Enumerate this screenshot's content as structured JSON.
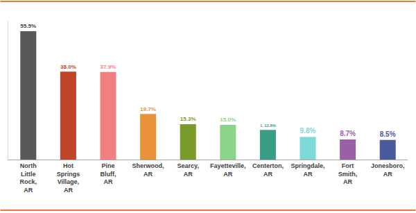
{
  "chart_data": {
    "type": "bar",
    "categories": [
      "North Little Rock, AR",
      "Hot Springs Village, AR",
      "Pine Bluff, AR",
      "Sherwood, AR",
      "Searcy, AR",
      "Fayetteville, AR",
      "Centerton, AR",
      "Springdale, AR",
      "Fort Smith, AR",
      "Jonesboro, AR"
    ],
    "values": [
      55.5,
      38.0,
      37.9,
      19.7,
      15.3,
      15.0,
      12.8,
      9.8,
      8.7,
      8.5
    ],
    "value_labels": [
      "55.5%",
      "38.0%",
      "37.9%",
      "19.7%",
      "15.3%",
      "15.0%",
      "1. 12.8%",
      "9.8%",
      "8.7%",
      "8.5%"
    ],
    "colors": [
      "#595959",
      "#c0462b",
      "#f08080",
      "#e8923a",
      "#7a9a2a",
      "#8cd48a",
      "#3a9e86",
      "#7fd8d8",
      "#9b5fa5",
      "#4a5a9a"
    ],
    "data_labels": true,
    "tick_labels": "x",
    "grid": false,
    "ylim": [
      0,
      60
    ]
  }
}
